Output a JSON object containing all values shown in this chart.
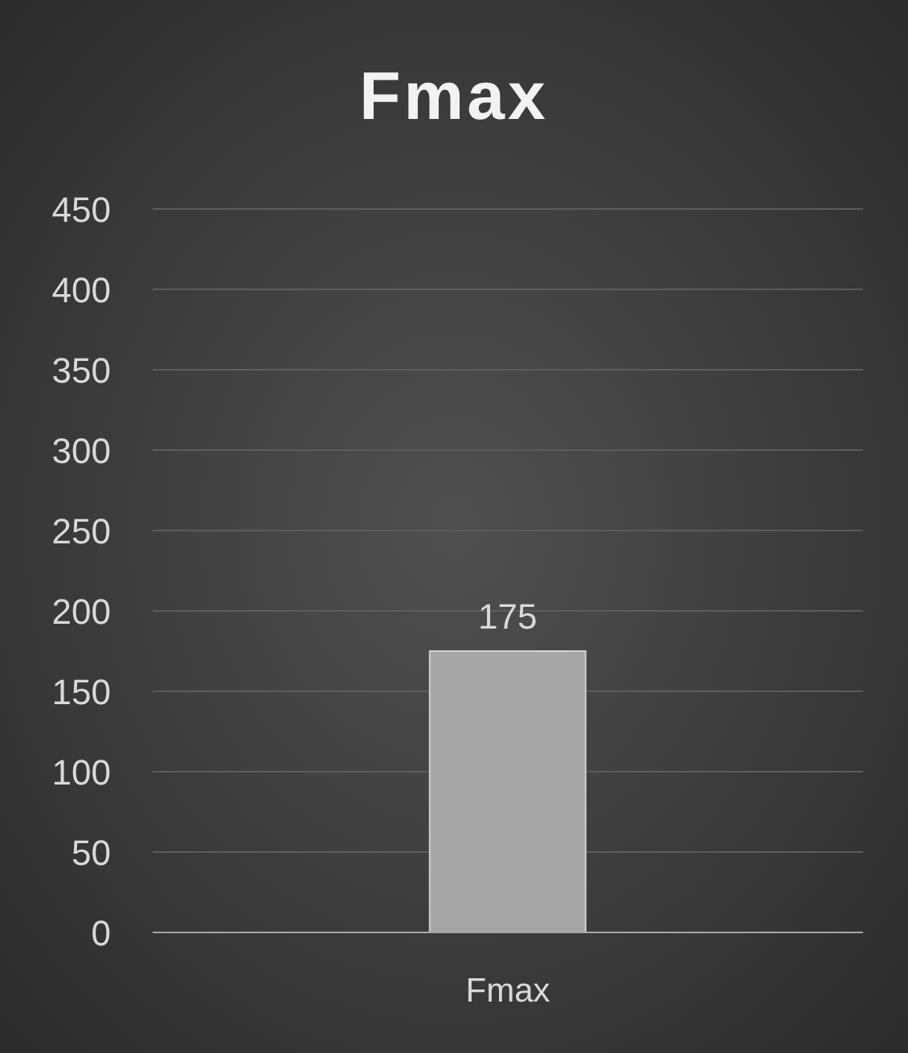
{
  "chart_data": {
    "type": "bar",
    "title": "Fmax",
    "categories": [
      "Fmax"
    ],
    "values": [
      175
    ],
    "color": "#a6a6a6",
    "ylim": [
      0,
      450
    ],
    "yticks": [
      0,
      50,
      100,
      150,
      200,
      250,
      300,
      350,
      400,
      450
    ],
    "grid": "y",
    "data_labels": true
  }
}
